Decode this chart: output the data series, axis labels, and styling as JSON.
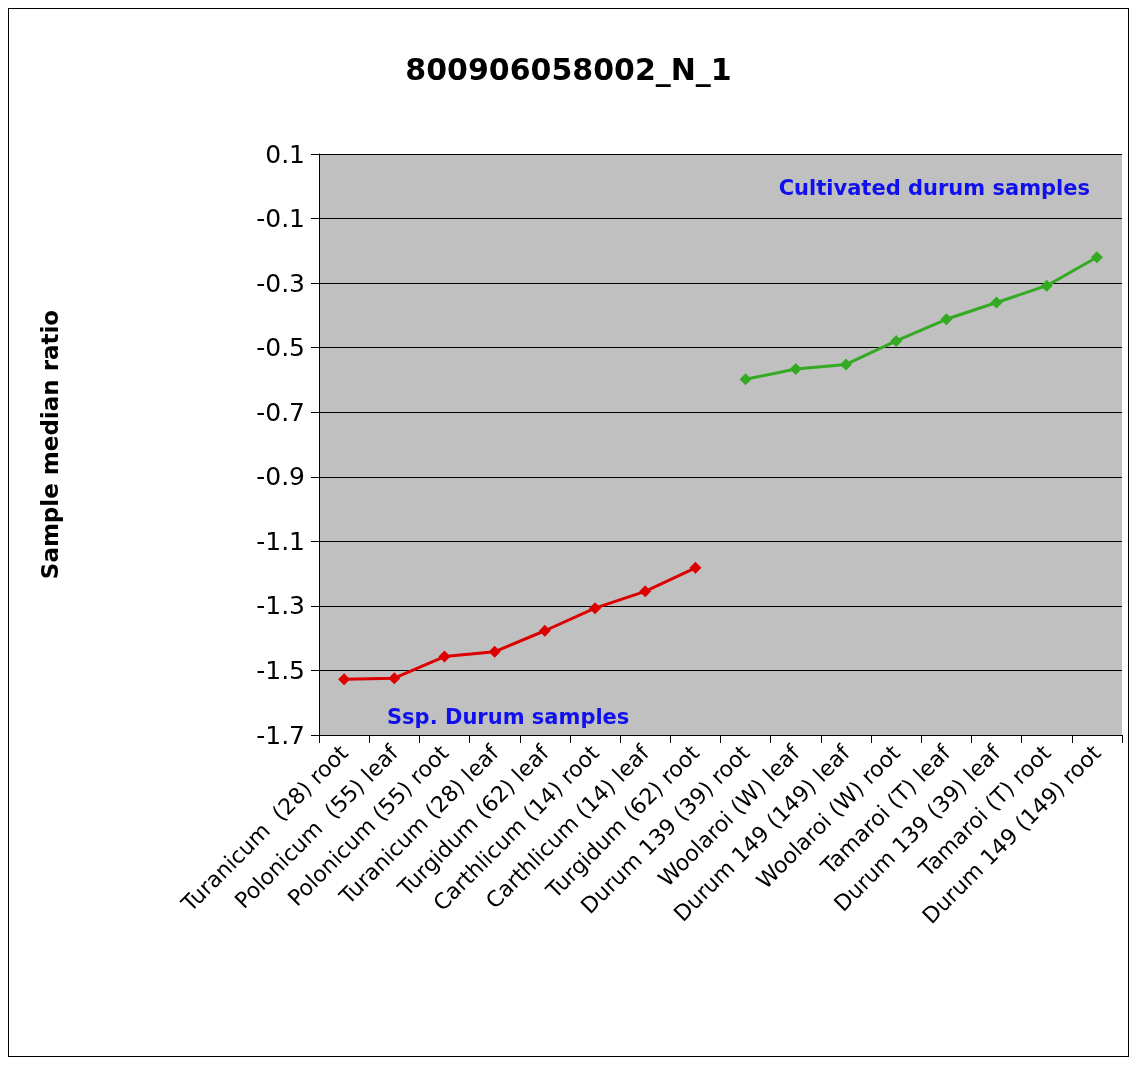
{
  "chart_data": {
    "type": "line",
    "title": "800906058002_N_1",
    "ylabel": "Sample median ratio",
    "categories": [
      "Turanicum  (28) root",
      "Polonicum  (55) leaf",
      "Polonicum (55) root",
      "Turanicum (28) leaf",
      "Turgidum (62) leaf",
      "Carthlicum (14) root",
      "Carthlicum (14) leaf",
      "Turgidum (62) root",
      "Durum 139 (39) root",
      "Woolaroi (W) leaf",
      "Durum 149 (149) leaf",
      "Woolaroi (W) root",
      "Tamaroi (T) leaf",
      "Durum 139 (39) leaf",
      "Tamaroi (T) root",
      "Durum 149 (149) root"
    ],
    "series": [
      {
        "color": "#dd0000",
        "values": [
          -1.527,
          -1.524,
          -1.457,
          -1.442,
          -1.377,
          -1.307,
          -1.255,
          -1.182,
          null,
          null,
          null,
          null,
          null,
          null,
          null,
          null
        ]
      },
      {
        "color": "#33aa22",
        "values": [
          null,
          null,
          null,
          null,
          null,
          null,
          null,
          null,
          -0.598,
          -0.566,
          -0.552,
          -0.479,
          -0.412,
          -0.36,
          -0.308,
          -0.22
        ]
      }
    ],
    "annotations": [
      "Cultivated durum samples",
      "Ssp. Durum samples"
    ],
    "ylim": [
      -1.7,
      0.1
    ],
    "yticks": [
      0.1,
      -0.1,
      -0.3,
      -0.5,
      -0.7,
      -0.9,
      -1.1,
      -1.3,
      -1.5,
      -1.7
    ],
    "grid": "y",
    "marker": "diamond",
    "line_style": "solid"
  }
}
